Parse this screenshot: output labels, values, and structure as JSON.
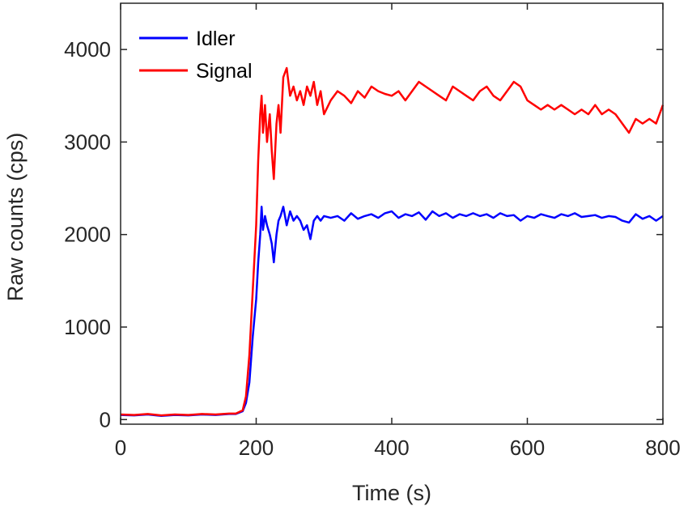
{
  "chart_data": {
    "type": "line",
    "xlabel": "Time (s)",
    "ylabel": "Raw counts (cps)",
    "xlim": [
      0,
      800
    ],
    "ylim": [
      -50,
      4500
    ],
    "xticks": [
      0,
      200,
      400,
      600,
      800
    ],
    "yticks": [
      0,
      1000,
      2000,
      3000,
      4000
    ],
    "grid": false,
    "legend_position": "top-left",
    "series": [
      {
        "name": "Idler",
        "color": "#0000ff",
        "points": [
          [
            0,
            50
          ],
          [
            20,
            45
          ],
          [
            40,
            55
          ],
          [
            60,
            40
          ],
          [
            80,
            50
          ],
          [
            100,
            45
          ],
          [
            120,
            55
          ],
          [
            140,
            50
          ],
          [
            160,
            60
          ],
          [
            170,
            60
          ],
          [
            180,
            90
          ],
          [
            185,
            180
          ],
          [
            190,
            400
          ],
          [
            195,
            900
          ],
          [
            200,
            1300
          ],
          [
            203,
            1700
          ],
          [
            206,
            2000
          ],
          [
            208,
            2300
          ],
          [
            210,
            2050
          ],
          [
            213,
            2200
          ],
          [
            216,
            2100
          ],
          [
            220,
            2000
          ],
          [
            223,
            1900
          ],
          [
            226,
            1700
          ],
          [
            230,
            2000
          ],
          [
            233,
            2150
          ],
          [
            236,
            2200
          ],
          [
            240,
            2300
          ],
          [
            245,
            2100
          ],
          [
            250,
            2250
          ],
          [
            255,
            2150
          ],
          [
            260,
            2200
          ],
          [
            265,
            2150
          ],
          [
            270,
            2050
          ],
          [
            275,
            2100
          ],
          [
            280,
            1950
          ],
          [
            285,
            2150
          ],
          [
            290,
            2200
          ],
          [
            295,
            2150
          ],
          [
            300,
            2200
          ],
          [
            310,
            2180
          ],
          [
            320,
            2200
          ],
          [
            330,
            2150
          ],
          [
            340,
            2230
          ],
          [
            350,
            2170
          ],
          [
            360,
            2200
          ],
          [
            370,
            2220
          ],
          [
            380,
            2180
          ],
          [
            390,
            2230
          ],
          [
            400,
            2250
          ],
          [
            410,
            2180
          ],
          [
            420,
            2220
          ],
          [
            430,
            2200
          ],
          [
            440,
            2240
          ],
          [
            450,
            2160
          ],
          [
            460,
            2250
          ],
          [
            470,
            2200
          ],
          [
            480,
            2230
          ],
          [
            490,
            2180
          ],
          [
            500,
            2220
          ],
          [
            510,
            2200
          ],
          [
            520,
            2230
          ],
          [
            530,
            2200
          ],
          [
            540,
            2220
          ],
          [
            550,
            2180
          ],
          [
            560,
            2230
          ],
          [
            570,
            2200
          ],
          [
            580,
            2210
          ],
          [
            590,
            2150
          ],
          [
            600,
            2200
          ],
          [
            610,
            2180
          ],
          [
            620,
            2220
          ],
          [
            630,
            2200
          ],
          [
            640,
            2180
          ],
          [
            650,
            2220
          ],
          [
            660,
            2200
          ],
          [
            670,
            2230
          ],
          [
            680,
            2190
          ],
          [
            690,
            2200
          ],
          [
            700,
            2210
          ],
          [
            710,
            2180
          ],
          [
            720,
            2200
          ],
          [
            730,
            2190
          ],
          [
            740,
            2150
          ],
          [
            750,
            2130
          ],
          [
            760,
            2220
          ],
          [
            770,
            2170
          ],
          [
            780,
            2200
          ],
          [
            790,
            2150
          ],
          [
            800,
            2200
          ]
        ]
      },
      {
        "name": "Signal",
        "color": "#ff0000",
        "points": [
          [
            0,
            55
          ],
          [
            20,
            50
          ],
          [
            40,
            60
          ],
          [
            60,
            45
          ],
          [
            80,
            55
          ],
          [
            100,
            50
          ],
          [
            120,
            60
          ],
          [
            140,
            55
          ],
          [
            160,
            65
          ],
          [
            170,
            65
          ],
          [
            180,
            100
          ],
          [
            185,
            250
          ],
          [
            190,
            700
          ],
          [
            195,
            1400
          ],
          [
            200,
            2100
          ],
          [
            203,
            2800
          ],
          [
            206,
            3300
          ],
          [
            208,
            3500
          ],
          [
            210,
            3100
          ],
          [
            213,
            3400
          ],
          [
            216,
            3000
          ],
          [
            220,
            3300
          ],
          [
            223,
            2900
          ],
          [
            226,
            2600
          ],
          [
            230,
            3200
          ],
          [
            233,
            3400
          ],
          [
            236,
            3100
          ],
          [
            240,
            3700
          ],
          [
            245,
            3800
          ],
          [
            250,
            3500
          ],
          [
            255,
            3600
          ],
          [
            260,
            3450
          ],
          [
            265,
            3550
          ],
          [
            270,
            3400
          ],
          [
            275,
            3600
          ],
          [
            280,
            3500
          ],
          [
            285,
            3650
          ],
          [
            290,
            3400
          ],
          [
            295,
            3550
          ],
          [
            300,
            3300
          ],
          [
            310,
            3450
          ],
          [
            320,
            3550
          ],
          [
            330,
            3500
          ],
          [
            340,
            3420
          ],
          [
            350,
            3550
          ],
          [
            360,
            3480
          ],
          [
            370,
            3600
          ],
          [
            380,
            3550
          ],
          [
            390,
            3520
          ],
          [
            400,
            3500
          ],
          [
            410,
            3550
          ],
          [
            420,
            3450
          ],
          [
            430,
            3550
          ],
          [
            440,
            3650
          ],
          [
            450,
            3600
          ],
          [
            460,
            3550
          ],
          [
            470,
            3500
          ],
          [
            480,
            3450
          ],
          [
            490,
            3600
          ],
          [
            500,
            3550
          ],
          [
            510,
            3500
          ],
          [
            520,
            3450
          ],
          [
            530,
            3550
          ],
          [
            540,
            3600
          ],
          [
            550,
            3500
          ],
          [
            560,
            3450
          ],
          [
            570,
            3550
          ],
          [
            580,
            3650
          ],
          [
            590,
            3600
          ],
          [
            600,
            3450
          ],
          [
            610,
            3400
          ],
          [
            620,
            3350
          ],
          [
            630,
            3400
          ],
          [
            640,
            3350
          ],
          [
            650,
            3400
          ],
          [
            660,
            3350
          ],
          [
            670,
            3300
          ],
          [
            680,
            3350
          ],
          [
            690,
            3300
          ],
          [
            700,
            3400
          ],
          [
            710,
            3300
          ],
          [
            720,
            3350
          ],
          [
            730,
            3300
          ],
          [
            740,
            3200
          ],
          [
            750,
            3100
          ],
          [
            760,
            3250
          ],
          [
            770,
            3200
          ],
          [
            780,
            3250
          ],
          [
            790,
            3200
          ],
          [
            800,
            3400
          ]
        ]
      }
    ]
  }
}
